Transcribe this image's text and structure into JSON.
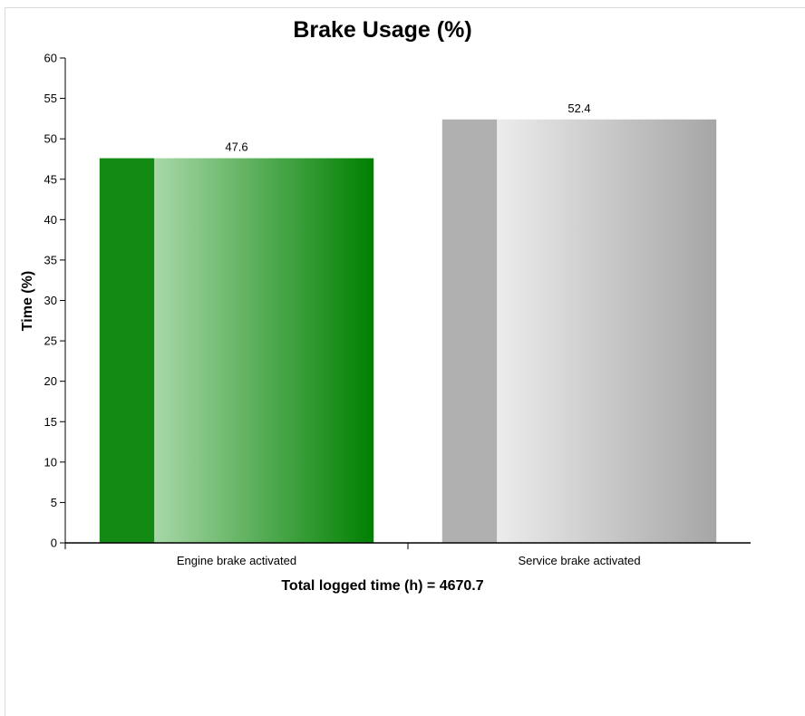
{
  "chart_data": {
    "type": "bar",
    "title": "Brake Usage (%)",
    "ylabel": "Time (%)",
    "xlabel": "Total logged time (h) = 4670.7",
    "categories": [
      "Engine brake activated",
      "Service brake activated"
    ],
    "values": [
      47.6,
      52.4
    ],
    "data_labels": [
      "47.6",
      "52.4"
    ],
    "ylim": [
      0,
      60
    ],
    "yticks": [
      0,
      5,
      10,
      15,
      20,
      25,
      30,
      35,
      40,
      45,
      50,
      55,
      60
    ],
    "grid": false,
    "legend": "none",
    "colors": {
      "engine": {
        "dark": "#008000",
        "light": "#a8d8a8",
        "side": "#138a13"
      },
      "service": {
        "dark": "#a6a6a6",
        "light": "#ececec",
        "side": "#b0b0b0"
      }
    }
  }
}
